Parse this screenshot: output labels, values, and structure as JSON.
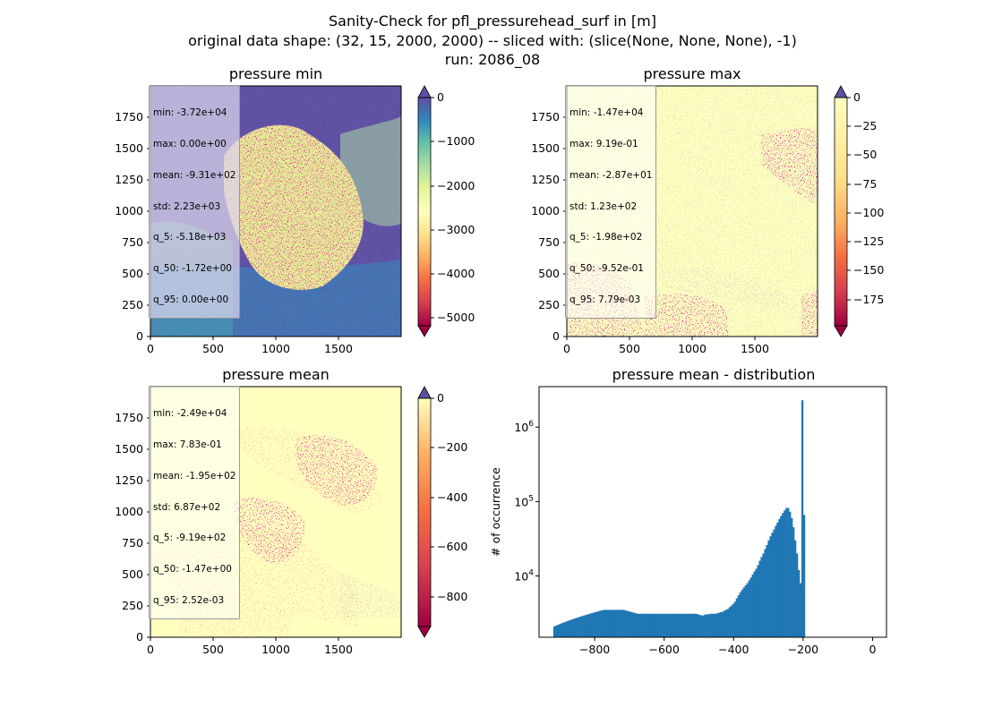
{
  "figure": {
    "suptitle_lines": [
      "Sanity-Check for pfl_pressurehead_surf in [m]",
      "original data shape: (32, 15, 2000, 2000) -- sliced with: (slice(None, None, None), -1)",
      "run: 2086_08"
    ]
  },
  "chart_data": [
    {
      "type": "heatmap",
      "id": "pressure_min",
      "title": "pressure min",
      "colormap": "Spectral",
      "xlim": [
        0,
        2000
      ],
      "ylim": [
        0,
        2000
      ],
      "x_ticks": [
        "0",
        "500",
        "1000",
        "1500"
      ],
      "y_ticks": [
        "0",
        "250",
        "500",
        "750",
        "1000",
        "1250",
        "1500",
        "1750"
      ],
      "colorbar": {
        "vmin": -5400,
        "vmax": 0,
        "extend": "both",
        "ticks": [
          0,
          -1000,
          -2000,
          -3000,
          -4000,
          -5000
        ],
        "tick_labels": [
          "0",
          "−1000",
          "−2000",
          "−3000",
          "−4000",
          "−5000"
        ]
      },
      "stats": [
        "min: -3.72e+04",
        "max: 0.00e+00",
        "mean: -9.31e+02",
        "std: 2.23e+03",
        "q_5: -5.18e+03",
        "q_50: -1.72e+00",
        "q_95: 0.00e+00"
      ]
    },
    {
      "type": "heatmap",
      "id": "pressure_max",
      "title": "pressure max",
      "colormap": "Spectral",
      "xlim": [
        0,
        2000
      ],
      "ylim": [
        0,
        2000
      ],
      "x_ticks": [
        "0",
        "500",
        "1000",
        "1500"
      ],
      "y_ticks": [
        "0",
        "250",
        "500",
        "750",
        "1000",
        "1250",
        "1500",
        "1750"
      ],
      "colorbar": {
        "vmin": -197,
        "vmax": 0,
        "extend": "both",
        "ticks": [
          0,
          -25,
          -50,
          -75,
          -100,
          -125,
          -150,
          -175
        ],
        "tick_labels": [
          "0",
          "−25",
          "−50",
          "−75",
          "−100",
          "−125",
          "−150",
          "−175"
        ]
      },
      "stats": [
        "min: -1.47e+04",
        "max: 9.19e-01",
        "mean: -2.87e+01",
        "std: 1.23e+02",
        "q_5: -1.98e+02",
        "q_50: -9.52e-01",
        "q_95: 7.79e-03"
      ]
    },
    {
      "type": "heatmap",
      "id": "pressure_mean",
      "title": "pressure mean",
      "colormap": "Spectral",
      "xlim": [
        0,
        2000
      ],
      "ylim": [
        0,
        2000
      ],
      "x_ticks": [
        "0",
        "500",
        "1000",
        "1500"
      ],
      "y_ticks": [
        "0",
        "250",
        "500",
        "750",
        "1000",
        "1250",
        "1500",
        "1750"
      ],
      "colorbar": {
        "vmin": -920,
        "vmax": 0,
        "extend": "both",
        "ticks": [
          0,
          -200,
          -400,
          -600,
          -800
        ],
        "tick_labels": [
          "0",
          "−200",
          "−400",
          "−600",
          "−800"
        ]
      },
      "stats": [
        "min: -2.49e+04",
        "max: 7.83e-01",
        "mean: -1.95e+02",
        "std: 6.87e+02",
        "q_5: -9.19e+02",
        "q_50: -1.47e+00",
        "q_95: 2.52e-03"
      ]
    },
    {
      "type": "bar",
      "id": "pressure_mean_distribution",
      "title": "pressure mean - distribution",
      "ylabel": "# of occurrence",
      "xlabel": "",
      "yscale": "log",
      "xlim": [
        -960,
        40
      ],
      "ylim": [
        1500,
        3500000
      ],
      "color": "#1f77b4",
      "x_ticks": [
        -800,
        -600,
        -400,
        -200,
        0
      ],
      "x_tick_labels": [
        "−800",
        "−600",
        "−400",
        "−200",
        "0"
      ],
      "y_ticks": [
        10000,
        100000,
        1000000
      ],
      "y_tick_labels": [
        "10^4",
        "10^5",
        "10^6"
      ],
      "bin_start": -919,
      "bin_width": 5.1,
      "values": [
        2100,
        2150,
        2200,
        2250,
        2300,
        2350,
        2400,
        2450,
        2500,
        2550,
        2600,
        2650,
        2700,
        2750,
        2800,
        2850,
        2900,
        2950,
        3000,
        3050,
        3100,
        3150,
        3200,
        3250,
        3300,
        3350,
        3400,
        3450,
        3500,
        3500,
        3500,
        3500,
        3500,
        3500,
        3500,
        3500,
        3500,
        3500,
        3500,
        3500,
        3450,
        3400,
        3350,
        3300,
        3250,
        3200,
        3150,
        3100,
        3100,
        3100,
        3100,
        3100,
        3100,
        3100,
        3100,
        3100,
        3100,
        3100,
        3100,
        3100,
        3100,
        3100,
        3100,
        3100,
        3100,
        3100,
        3100,
        3100,
        3100,
        3100,
        3100,
        3100,
        3100,
        3100,
        3100,
        3100,
        3100,
        3100,
        3100,
        3100,
        3100,
        3050,
        3000,
        2950,
        2950,
        3000,
        3050,
        3050,
        3100,
        3100,
        3100,
        3100,
        3150,
        3200,
        3250,
        3300,
        3400,
        3500,
        3600,
        3800,
        4000,
        4200,
        4500,
        5000,
        5500,
        6000,
        6500,
        7000,
        7500,
        8000,
        8700,
        9500,
        10500,
        11500,
        12500,
        14000,
        16000,
        18000,
        20000,
        23000,
        26000,
        30000,
        34000,
        38000,
        42000,
        47000,
        52000,
        58000,
        64000,
        70000,
        76000,
        82000,
        82000,
        73000,
        60000,
        45000,
        30000,
        20000,
        12000,
        8000,
        2300000,
        66000
      ]
    }
  ]
}
